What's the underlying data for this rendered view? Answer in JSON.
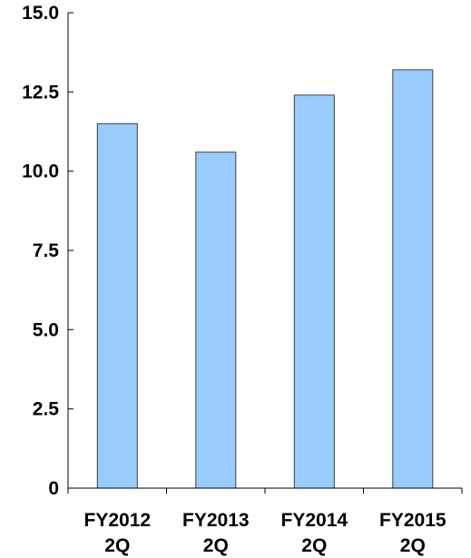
{
  "colors": {
    "bar_fill": "#99ccff",
    "bar_stroke": "#3f3f3f",
    "axis": "#000000",
    "text": "#000000"
  },
  "chart_data": {
    "type": "bar",
    "title": "",
    "xlabel": "",
    "ylabel": "",
    "categories": [
      [
        "FY2012",
        "2Q"
      ],
      [
        "FY2013",
        "2Q"
      ],
      [
        "FY2014",
        "2Q"
      ],
      [
        "FY2015",
        "2Q"
      ]
    ],
    "values": [
      11.5,
      10.6,
      12.4,
      13.2
    ],
    "ylim": [
      0,
      15
    ],
    "yticks": [
      0,
      2.5,
      5,
      7.5,
      10,
      12.5,
      15
    ],
    "ytick_labels": [
      "0",
      "2.5",
      "5.0",
      "7.5",
      "10.0",
      "12.5",
      "15.0"
    ],
    "grid": false,
    "legend": "none"
  }
}
